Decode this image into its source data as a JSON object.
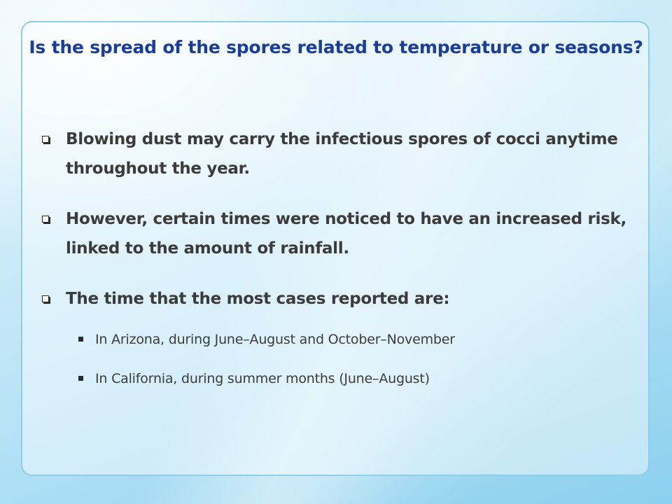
{
  "slide": {
    "title": "Is the spread of the spores related to temperature or seasons?",
    "bullets": [
      {
        "icon": "checkbox-square-icon",
        "text": "Blowing dust may carry the infectious spores of cocci anytime throughout the year."
      },
      {
        "icon": "checkbox-square-icon",
        "text": "However, certain times were noticed to have an increased risk, linked to the amount of rainfall."
      },
      {
        "icon": "checkbox-square-icon",
        "text": "The time that the most cases reported are:",
        "sub_bullets": [
          {
            "icon": "filled-square-icon",
            "text": "In Arizona, during June–August and October–November"
          },
          {
            "icon": "filled-square-icon",
            "text": "In California, during summer months (June–August)"
          }
        ]
      }
    ]
  },
  "colors": {
    "title": "#1a3d9c",
    "body_text": "#3b3b3b",
    "panel_border": "#8fcde9",
    "background": "#b8e3f6"
  }
}
